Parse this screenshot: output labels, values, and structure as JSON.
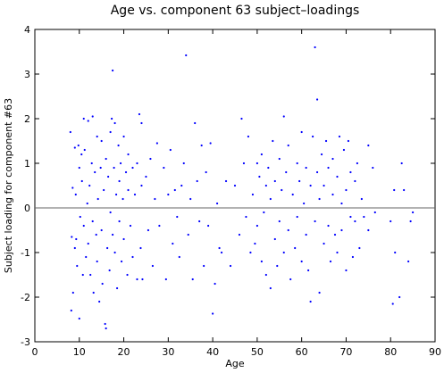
{
  "chart_data": {
    "type": "scatter",
    "title": "Age vs. component 63 subject–loadings",
    "x_label": "Age",
    "y_label": "Subject loading for component #63",
    "color": "#0000ff",
    "hline": 0,
    "xlim": [
      0,
      90
    ],
    "xticks": [
      0,
      10,
      20,
      30,
      40,
      50,
      60,
      70,
      80,
      90
    ],
    "ylim": [
      -3,
      4
    ],
    "yticks": [
      -3,
      -2,
      -1,
      0,
      1,
      2,
      3,
      4
    ],
    "x": [
      8,
      8.5,
      8.3,
      8.6,
      8.2,
      9,
      9.2,
      9,
      9.5,
      9.3,
      9.8,
      10,
      10.2,
      10,
      10.5,
      10.6,
      10.8,
      11,
      11,
      11.2,
      11.5,
      11.8,
      12,
      12,
      12.3,
      12.5,
      12.8,
      13,
      13,
      13.2,
      13.5,
      13.8,
      14,
      14,
      14.2,
      14.5,
      14.8,
      15,
      15,
      15.2,
      15.5,
      15.8,
      16,
      16,
      16.3,
      16.5,
      16.8,
      17,
      17,
      17.3,
      17.5,
      17.5,
      17.8,
      18,
      18,
      18.3,
      18.5,
      18.8,
      19,
      19,
      19.3,
      19.5,
      19.8,
      20,
      20,
      20.5,
      20.8,
      21,
      21,
      21.5,
      22,
      22,
      22.5,
      23,
      23,
      23.5,
      23.8,
      24,
      24,
      24.2,
      25,
      25.5,
      26,
      26.5,
      27,
      27.5,
      28,
      29,
      29.5,
      30,
      30.5,
      31,
      31.5,
      32,
      32.5,
      33,
      33.5,
      34,
      34.5,
      35,
      35.5,
      36,
      36.5,
      37,
      37.5,
      38,
      38.5,
      39,
      39.5,
      40,
      40.5,
      41,
      41.5,
      42,
      43,
      44,
      45,
      46,
      46.5,
      47,
      47.5,
      48,
      48.5,
      49,
      49.5,
      50,
      50,
      50.5,
      51,
      51,
      51.5,
      52,
      52,
      52.5,
      53,
      53,
      53.5,
      54,
      54,
      54.5,
      55,
      55,
      55.5,
      56,
      56,
      56.5,
      57,
      57,
      57.5,
      58,
      58.5,
      59,
      59,
      59.5,
      60,
      60,
      60.5,
      61,
      61,
      61.5,
      62,
      62,
      62.5,
      63,
      63,
      63.5,
      63.5,
      64,
      64,
      64.5,
      65,
      65,
      65.5,
      66,
      66,
      66.5,
      67,
      67,
      67.5,
      68,
      68,
      68.5,
      69,
      69,
      69.5,
      70,
      70,
      70.5,
      71,
      71,
      71.5,
      72,
      72,
      72.5,
      73,
      73.5,
      74,
      75,
      75,
      76,
      76.5,
      80,
      80.5,
      80.8,
      81,
      82,
      82.5,
      83,
      84,
      84.5,
      85
    ],
    "values": [
      1.7,
      0.45,
      -0.65,
      -1.9,
      -2.3,
      1.35,
      0.3,
      -0.9,
      -1.3,
      -0.7,
      1.4,
      0.9,
      -0.2,
      -2.48,
      1.2,
      0.6,
      -1.5,
      2.0,
      -0.4,
      1.3,
      -1.1,
      0.1,
      1.95,
      -0.8,
      0.5,
      -1.5,
      1.0,
      2.05,
      -0.3,
      -1.9,
      0.8,
      -0.6,
      1.6,
      -1.2,
      0.2,
      -2.1,
      0.9,
      -0.5,
      1.5,
      -1.7,
      0.4,
      -2.6,
      -2.7,
      1.1,
      -0.9,
      0.7,
      -1.4,
      1.7,
      -0.1,
      2.0,
      3.08,
      -0.6,
      0.9,
      1.9,
      -1.0,
      0.3,
      -1.8,
      1.4,
      0.6,
      -0.3,
      1.0,
      -1.2,
      0.2,
      1.6,
      -0.7,
      0.8,
      -1.5,
      0.4,
      1.2,
      -0.4,
      0.9,
      -1.1,
      0.3,
      1.0,
      -1.6,
      2.1,
      -0.9,
      1.9,
      0.5,
      -1.6,
      0.7,
      -0.5,
      1.1,
      -1.3,
      0.2,
      1.45,
      -0.4,
      0.9,
      -1.6,
      0.3,
      1.3,
      -0.8,
      0.4,
      -0.2,
      -1.1,
      0.5,
      1.0,
      3.42,
      -0.6,
      0.2,
      -1.6,
      1.9,
      0.6,
      -0.3,
      1.4,
      -1.3,
      0.8,
      -0.4,
      1.45,
      -2.37,
      -1.7,
      0.1,
      -0.9,
      -1.0,
      0.6,
      -1.3,
      0.5,
      -0.6,
      2.0,
      1.0,
      -0.2,
      1.6,
      -1.0,
      0.3,
      -0.8,
      1.0,
      -0.4,
      0.7,
      -1.2,
      1.2,
      -0.1,
      0.5,
      -1.5,
      0.9,
      -1.8,
      0.2,
      1.5,
      -0.7,
      0.6,
      -1.3,
      1.1,
      -0.3,
      0.4,
      2.05,
      -1.0,
      0.8,
      -0.5,
      1.4,
      -1.6,
      0.3,
      -0.9,
      1.0,
      -0.2,
      0.6,
      -1.2,
      1.7,
      0.1,
      -0.6,
      0.9,
      -1.4,
      -2.1,
      0.5,
      1.6,
      3.6,
      -0.3,
      2.43,
      0.8,
      -1.9,
      0.2,
      1.2,
      -0.8,
      0.5,
      1.5,
      -0.4,
      0.9,
      -1.2,
      0.3,
      1.1,
      -0.6,
      0.7,
      -1.0,
      1.6,
      0.1,
      -0.5,
      1.3,
      -1.4,
      0.4,
      1.5,
      -0.2,
      0.8,
      -1.1,
      0.6,
      -0.3,
      1.0,
      -0.9,
      0.2,
      -0.2,
      1.4,
      -0.5,
      0.9,
      -0.1,
      -0.3,
      -2.15,
      0.4,
      -1.0,
      -2.0,
      1.0,
      0.4,
      -1.2,
      -0.3,
      -0.1
    ]
  }
}
